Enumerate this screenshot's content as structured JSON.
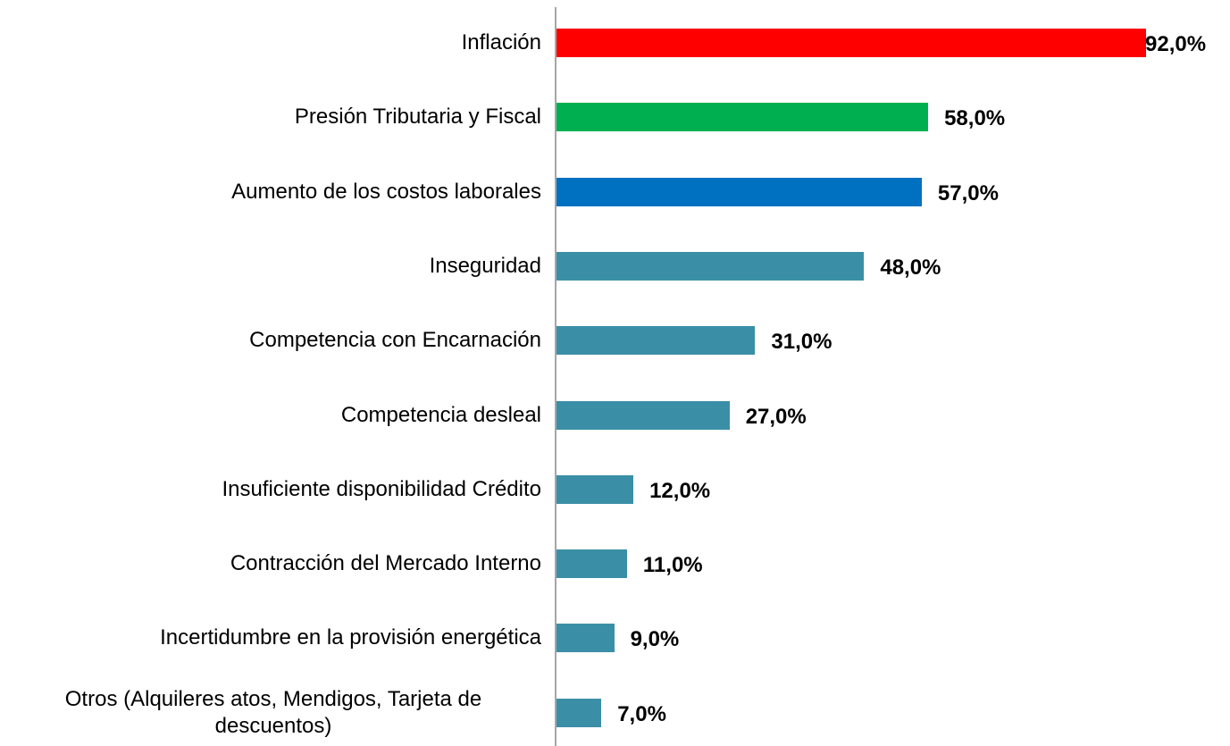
{
  "chart_data": {
    "type": "bar",
    "orientation": "horizontal",
    "categories": [
      "Inflación",
      "Presión Tributaria y Fiscal",
      "Aumento de los costos laborales",
      "Inseguridad",
      "Competencia con Encarnación",
      "Competencia desleal",
      "Insuficiente disponibilidad Crédito",
      "Contracción del Mercado Interno",
      "Incertidumbre en la provisión energética",
      "Otros (Alquileres atos, Mendigos, Tarjeta de descuentos)"
    ],
    "values": [
      92,
      58,
      57,
      48,
      31,
      27,
      12,
      11,
      9,
      7
    ],
    "value_labels": [
      "92,0%",
      "58,0%",
      "57,0%",
      "48,0%",
      "31,0%",
      "27,0%",
      "12,0%",
      "11,0%",
      "9,0%",
      "7,0%"
    ],
    "colors": [
      "#ff0000",
      "#00b050",
      "#0070c0",
      "#3a8fa6",
      "#3a8fa6",
      "#3a8fa6",
      "#3a8fa6",
      "#3a8fa6",
      "#3a8fa6",
      "#3a8fa6"
    ]
  }
}
